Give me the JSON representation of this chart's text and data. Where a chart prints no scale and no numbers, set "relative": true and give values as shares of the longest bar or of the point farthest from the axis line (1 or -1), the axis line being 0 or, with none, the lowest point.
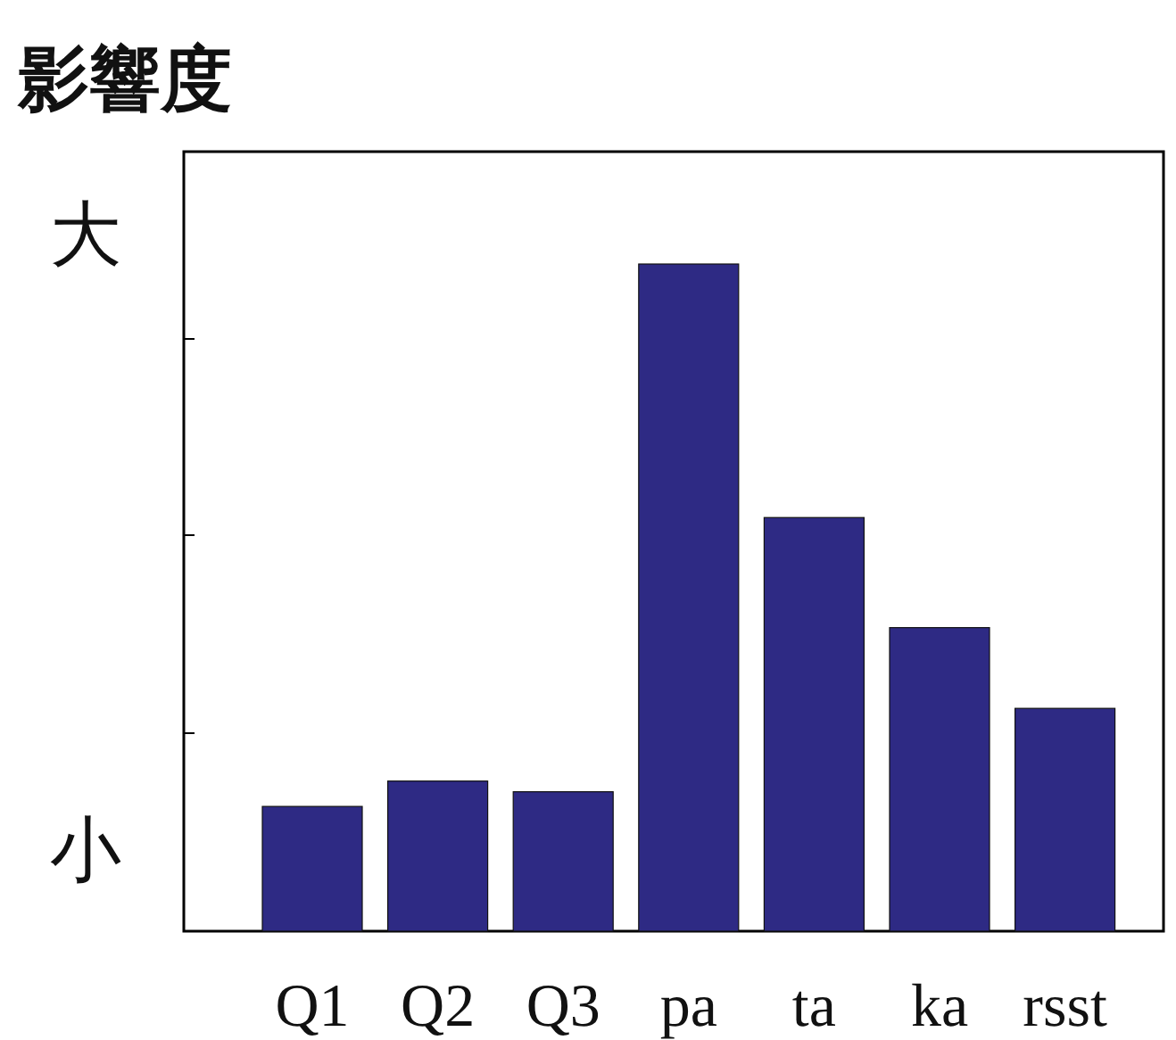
{
  "chart_data": {
    "type": "bar",
    "title": "影響度",
    "relative": true,
    "categories": [
      "Q1",
      "Q2",
      "Q3",
      "pa",
      "ta",
      "ka",
      "rsst"
    ],
    "values": [
      0.187,
      0.225,
      0.209,
      1,
      0.62,
      0.455,
      0.334
    ],
    "color": "#2e2a84",
    "annotations": [
      "大",
      "小"
    ]
  }
}
